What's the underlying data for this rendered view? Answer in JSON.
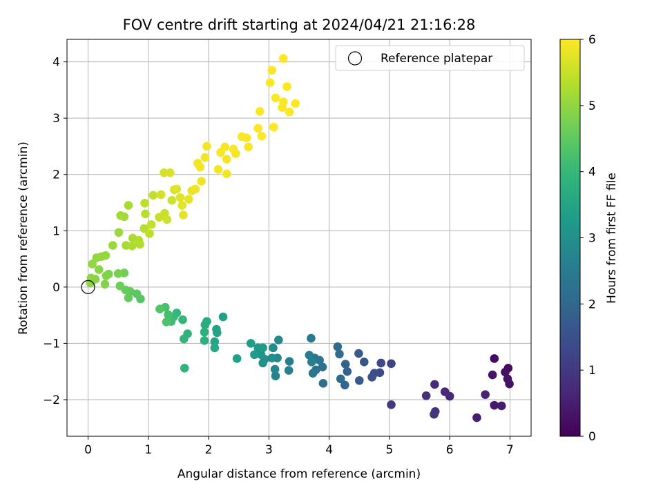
{
  "chart_data": {
    "type": "scatter",
    "title": "FOV centre drift starting at 2024/04/21 21:16:28",
    "xlabel": "Angular distance from reference (arcmin)",
    "ylabel": "Rotation from reference (arcmin)",
    "xlim": [
      -0.35,
      7.35
    ],
    "ylim": [
      -2.65,
      4.4
    ],
    "xticks": [
      0,
      1,
      2,
      3,
      4,
      5,
      6,
      7
    ],
    "yticks": [
      -2,
      -1,
      0,
      1,
      2,
      3,
      4
    ],
    "grid": true,
    "legend": {
      "position": "top-right",
      "entries": [
        "Reference platepar"
      ]
    },
    "reference_point": {
      "x": 0,
      "y": 0,
      "label": "Reference platepar"
    },
    "colorbar": {
      "label": "Hours from first FF file",
      "range": [
        0,
        6
      ],
      "ticks": [
        0,
        1,
        2,
        3,
        4,
        5,
        6
      ],
      "colormap": [
        "#440154",
        "#482878",
        "#3e4989",
        "#31688e",
        "#26828e",
        "#1f9e89",
        "#35b779",
        "#6ece58",
        "#b5de2b",
        "#fde725"
      ]
    },
    "marker_style": "filled circle, colored by hours",
    "points": [
      [
        6.74,
        -1.27,
        0.2
      ],
      [
        6.97,
        -1.44,
        0.2
      ],
      [
        6.92,
        -1.51,
        0.25
      ],
      [
        6.96,
        -1.63,
        0.3
      ],
      [
        6.99,
        -1.72,
        0.3
      ],
      [
        6.71,
        -1.56,
        0.35
      ],
      [
        6.74,
        -2.1,
        0.4
      ],
      [
        6.86,
        -2.11,
        0.45
      ],
      [
        6.45,
        -2.32,
        0.5
      ],
      [
        6.59,
        -1.91,
        0.55
      ],
      [
        6.0,
        -1.94,
        0.65
      ],
      [
        5.92,
        -1.86,
        0.7
      ],
      [
        5.75,
        -1.73,
        0.75
      ],
      [
        5.61,
        -1.93,
        0.8
      ],
      [
        5.76,
        -2.21,
        0.85
      ],
      [
        5.74,
        -2.26,
        0.9
      ],
      [
        5.03,
        -2.09,
        1.05
      ],
      [
        5.03,
        -1.36,
        1.2
      ],
      [
        4.86,
        -1.35,
        1.3
      ],
      [
        4.84,
        -1.52,
        1.35
      ],
      [
        4.75,
        -1.53,
        1.45
      ],
      [
        4.71,
        -1.6,
        1.5
      ],
      [
        4.58,
        -1.33,
        1.6
      ],
      [
        4.49,
        -1.18,
        1.7
      ],
      [
        4.5,
        -1.66,
        1.75
      ],
      [
        4.3,
        -1.5,
        1.85
      ],
      [
        4.27,
        -1.37,
        1.9
      ],
      [
        4.26,
        -1.74,
        1.95
      ],
      [
        4.19,
        -1.63,
        2.0
      ],
      [
        4.14,
        -1.06,
        2.05
      ],
      [
        4.17,
        -1.19,
        2.1
      ],
      [
        3.9,
        -1.71,
        2.15
      ],
      [
        3.89,
        -1.42,
        2.2
      ],
      [
        3.84,
        -1.3,
        2.25
      ],
      [
        3.78,
        -1.47,
        2.3
      ],
      [
        3.73,
        -1.53,
        2.35
      ],
      [
        3.76,
        -1.26,
        2.4
      ],
      [
        3.7,
        -0.91,
        2.45
      ],
      [
        3.67,
        -1.21,
        2.5
      ],
      [
        3.71,
        -1.33,
        2.55
      ],
      [
        3.34,
        -1.32,
        2.6
      ],
      [
        3.33,
        -1.48,
        2.65
      ],
      [
        3.11,
        -1.58,
        2.7
      ],
      [
        3.1,
        -1.46,
        2.75
      ],
      [
        3.14,
        -1.26,
        2.8
      ],
      [
        3.16,
        -0.94,
        2.85
      ],
      [
        3.07,
        -1.08,
        2.9
      ],
      [
        3.05,
        -1.26,
        2.95
      ],
      [
        2.93,
        -1.28,
        3.0
      ],
      [
        2.9,
        -1.35,
        3.05
      ],
      [
        2.87,
        -1.2,
        3.1
      ],
      [
        2.82,
        -1.08,
        3.15
      ],
      [
        2.9,
        -1.08,
        3.2
      ],
      [
        2.76,
        -1.2,
        3.25
      ],
      [
        2.7,
        -1.0,
        3.3
      ],
      [
        2.47,
        -1.27,
        3.35
      ],
      [
        2.24,
        -0.53,
        3.4
      ],
      [
        2.13,
        -0.75,
        3.45
      ],
      [
        2.14,
        -0.81,
        3.5
      ],
      [
        2.1,
        -0.97,
        3.55
      ],
      [
        2.1,
        -1.08,
        3.6
      ],
      [
        1.97,
        -0.61,
        3.65
      ],
      [
        1.94,
        -0.67,
        3.7
      ],
      [
        1.93,
        -0.8,
        3.75
      ],
      [
        1.93,
        -0.95,
        3.8
      ],
      [
        1.65,
        -0.83,
        3.85
      ],
      [
        1.59,
        -0.92,
        3.9
      ],
      [
        1.6,
        -1.44,
        3.9
      ],
      [
        1.57,
        -0.58,
        3.95
      ],
      [
        1.47,
        -0.46,
        4.0
      ],
      [
        1.42,
        -0.53,
        4.05
      ],
      [
        1.38,
        -0.61,
        4.1
      ],
      [
        1.35,
        -0.57,
        4.15
      ],
      [
        1.33,
        -0.49,
        4.2
      ],
      [
        1.28,
        -0.36,
        4.25
      ],
      [
        1.3,
        -0.62,
        4.3
      ],
      [
        1.19,
        -0.39,
        4.35
      ],
      [
        0.87,
        -0.21,
        4.4
      ],
      [
        0.81,
        -0.12,
        4.45
      ],
      [
        0.7,
        -0.08,
        4.5
      ],
      [
        0.67,
        -0.19,
        4.55
      ],
      [
        0.62,
        -0.05,
        4.6
      ],
      [
        0.53,
        0.02,
        4.65
      ],
      [
        0.6,
        0.25,
        4.7
      ],
      [
        0.5,
        0.24,
        4.75
      ],
      [
        0.34,
        0.23,
        4.8
      ],
      [
        0.3,
        0.2,
        4.85
      ],
      [
        0.28,
        0.05,
        4.85
      ],
      [
        0.18,
        0.31,
        4.9
      ],
      [
        0.12,
        0.14,
        4.9
      ],
      [
        0.05,
        0.16,
        4.95
      ],
      [
        0.04,
        0.07,
        4.95
      ],
      [
        0.07,
        0.41,
        5.0
      ],
      [
        0.14,
        0.52,
        5.0
      ],
      [
        0.22,
        0.54,
        5.05
      ],
      [
        0.29,
        0.56,
        5.05
      ],
      [
        0.41,
        0.74,
        5.1
      ],
      [
        0.51,
        0.97,
        5.1
      ],
      [
        0.54,
        1.27,
        5.15
      ],
      [
        0.6,
        1.25,
        5.15
      ],
      [
        0.63,
        0.74,
        5.2
      ],
      [
        0.67,
        1.45,
        5.2
      ],
      [
        0.73,
        0.73,
        5.25
      ],
      [
        0.74,
        0.87,
        5.25
      ],
      [
        0.84,
        0.83,
        5.3
      ],
      [
        0.86,
        0.76,
        5.3
      ],
      [
        0.93,
        1.04,
        5.35
      ],
      [
        0.95,
        1.3,
        5.35
      ],
      [
        0.94,
        1.49,
        5.4
      ],
      [
        1.02,
        0.95,
        5.4
      ],
      [
        1.05,
        1.11,
        5.45
      ],
      [
        1.08,
        1.63,
        5.45
      ],
      [
        1.18,
        1.24,
        5.5
      ],
      [
        1.27,
        1.31,
        5.5
      ],
      [
        1.31,
        1.2,
        5.55
      ],
      [
        1.39,
        1.54,
        5.55
      ],
      [
        1.21,
        1.64,
        5.6
      ],
      [
        1.26,
        2.03,
        5.6
      ],
      [
        1.36,
        2.03,
        5.65
      ],
      [
        1.43,
        1.73,
        5.65
      ],
      [
        1.47,
        1.74,
        5.7
      ],
      [
        1.53,
        1.59,
        5.7
      ],
      [
        1.56,
        1.45,
        5.75
      ],
      [
        1.58,
        1.28,
        5.75
      ],
      [
        1.67,
        1.56,
        5.8
      ],
      [
        1.72,
        1.71,
        5.8
      ],
      [
        1.78,
        1.74,
        5.85
      ],
      [
        1.88,
        1.88,
        5.85
      ],
      [
        1.86,
        2.13,
        5.9
      ],
      [
        1.82,
        2.2,
        5.9
      ],
      [
        1.94,
        2.3,
        5.9
      ],
      [
        1.97,
        2.5,
        5.92
      ],
      [
        2.16,
        2.09,
        5.92
      ],
      [
        2.3,
        2.01,
        5.92
      ],
      [
        2.3,
        2.27,
        5.94
      ],
      [
        2.2,
        2.39,
        5.94
      ],
      [
        2.27,
        2.49,
        5.94
      ],
      [
        2.41,
        2.45,
        5.95
      ],
      [
        2.45,
        2.37,
        5.95
      ],
      [
        2.55,
        2.67,
        5.96
      ],
      [
        2.63,
        2.65,
        5.96
      ],
      [
        2.66,
        2.49,
        5.96
      ],
      [
        2.82,
        2.82,
        5.97
      ],
      [
        2.85,
        3.12,
        5.97
      ],
      [
        2.88,
        2.68,
        5.97
      ],
      [
        3.08,
        2.84,
        5.98
      ],
      [
        3.11,
        3.36,
        5.98
      ],
      [
        3.05,
        3.85,
        5.98
      ],
      [
        3.02,
        3.63,
        5.98
      ],
      [
        3.22,
        3.19,
        5.99
      ],
      [
        3.24,
        3.29,
        5.99
      ],
      [
        3.3,
        3.56,
        5.99
      ],
      [
        3.44,
        3.26,
        5.99
      ],
      [
        3.34,
        3.11,
        5.99
      ],
      [
        3.24,
        4.06,
        6.0
      ]
    ]
  }
}
